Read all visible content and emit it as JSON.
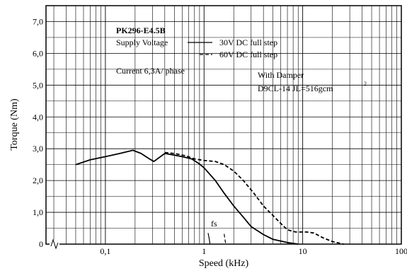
{
  "chart_data": {
    "type": "line",
    "xlabel": "Speed (kHz)",
    "ylabel": "Torque (Nm)",
    "x_scale": "log",
    "xlim": [
      0.025,
      100
    ],
    "ylim": [
      0,
      7.5
    ],
    "grid": true,
    "x_tick_labels": [
      {
        "value": 0.1,
        "label": "0,1"
      },
      {
        "value": 1,
        "label": "1"
      },
      {
        "value": 10,
        "label": "10"
      },
      {
        "value": 100,
        "label": "100"
      }
    ],
    "y_tick_labels": [
      {
        "value": 0,
        "label": "0"
      },
      {
        "value": 1,
        "label": "1,0"
      },
      {
        "value": 2,
        "label": "2,0"
      },
      {
        "value": 3,
        "label": "3,0"
      },
      {
        "value": 4,
        "label": "4,0"
      },
      {
        "value": 5,
        "label": "5,0"
      },
      {
        "value": 6,
        "label": "6,0"
      },
      {
        "value": 7,
        "label": "7,0"
      }
    ],
    "annotations": {
      "model": "PK296-E4.5B",
      "supply_voltage": "Supply Voltage",
      "current": "Current 6,3A/ phase",
      "damper_line1": "With Damper",
      "damper_line2": "D9CL-14  JL=516gcm",
      "damper_superscript": "2",
      "fs": "fs"
    },
    "series": [
      {
        "name": "30V DC full step",
        "style": "solid",
        "color": "#000000",
        "points": [
          [
            0.05,
            2.5
          ],
          [
            0.07,
            2.65
          ],
          [
            0.1,
            2.75
          ],
          [
            0.14,
            2.85
          ],
          [
            0.19,
            2.95
          ],
          [
            0.23,
            2.85
          ],
          [
            0.28,
            2.68
          ],
          [
            0.31,
            2.6
          ],
          [
            0.35,
            2.72
          ],
          [
            0.4,
            2.85
          ],
          [
            0.5,
            2.8
          ],
          [
            0.6,
            2.75
          ],
          [
            0.75,
            2.68
          ],
          [
            0.9,
            2.52
          ],
          [
            1.0,
            2.4
          ],
          [
            1.3,
            2.0
          ],
          [
            1.6,
            1.6
          ],
          [
            2.0,
            1.2
          ],
          [
            2.5,
            0.85
          ],
          [
            3.0,
            0.55
          ],
          [
            4.0,
            0.3
          ],
          [
            5.0,
            0.15
          ],
          [
            7.0,
            0.05
          ],
          [
            9.0,
            0.0
          ]
        ]
      },
      {
        "name": "60V DC full step",
        "style": "dashed",
        "color": "#000000",
        "points": [
          [
            0.4,
            2.88
          ],
          [
            0.5,
            2.85
          ],
          [
            0.65,
            2.78
          ],
          [
            0.8,
            2.68
          ],
          [
            1.0,
            2.63
          ],
          [
            1.3,
            2.6
          ],
          [
            1.6,
            2.5
          ],
          [
            2.0,
            2.3
          ],
          [
            2.5,
            2.0
          ],
          [
            3.2,
            1.6
          ],
          [
            4.0,
            1.2
          ],
          [
            5.0,
            0.9
          ],
          [
            6.0,
            0.65
          ],
          [
            7.0,
            0.45
          ],
          [
            8.5,
            0.38
          ],
          [
            11.0,
            0.38
          ],
          [
            13.0,
            0.35
          ],
          [
            16.0,
            0.2
          ],
          [
            20.0,
            0.08
          ],
          [
            26.0,
            0.0
          ]
        ]
      }
    ],
    "fs_markers": [
      {
        "style": "solid",
        "points": [
          [
            1.1,
            0.35
          ],
          [
            1.13,
            0.15
          ],
          [
            1.15,
            0.0
          ]
        ]
      },
      {
        "style": "dashed",
        "points": [
          [
            1.6,
            0.32
          ],
          [
            1.63,
            0.15
          ],
          [
            1.66,
            0.0
          ]
        ]
      }
    ]
  }
}
